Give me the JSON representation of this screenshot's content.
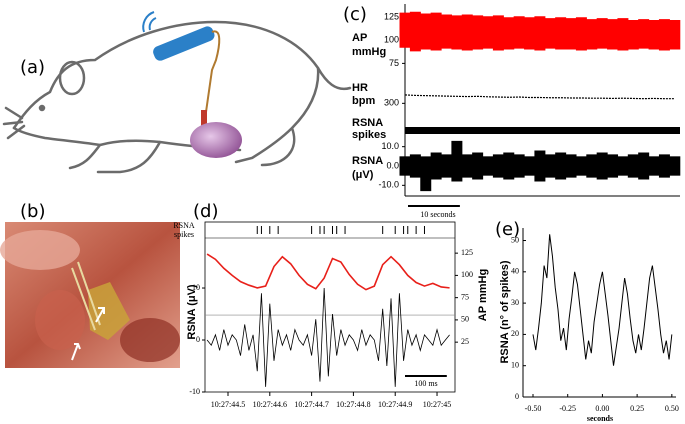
{
  "panels": {
    "a": "(a)",
    "b": "(b)"
  },
  "chart_data": [
    {
      "type": "band",
      "panel": "(c)",
      "ylabel_lines": [
        "AP",
        "mmHg"
      ],
      "color": "#ff0000",
      "x": [
        0,
        2,
        4,
        6,
        8,
        10,
        12,
        14,
        16,
        18,
        20,
        22,
        24,
        26,
        28,
        30,
        32,
        34,
        36,
        38,
        40,
        42,
        44,
        46,
        48,
        50,
        52
      ],
      "xlim": [
        0,
        53
      ],
      "upper": [
        130,
        131,
        129,
        130,
        128,
        127,
        128,
        127,
        126,
        127,
        125,
        126,
        125,
        126,
        124,
        125,
        124,
        125,
        123,
        124,
        123,
        124,
        122,
        123,
        122,
        123,
        122
      ],
      "lower": [
        92,
        88,
        90,
        89,
        91,
        90,
        89,
        90,
        91,
        89,
        90,
        91,
        90,
        89,
        91,
        90,
        90,
        89,
        90,
        91,
        90,
        89,
        90,
        91,
        90,
        89,
        90
      ],
      "ylim": [
        70,
        135
      ],
      "yticks": [
        75,
        100,
        125
      ]
    },
    {
      "type": "line",
      "ylabel_lines": [
        "HR",
        "bpm"
      ],
      "color": "#000000",
      "x": [
        0,
        2,
        4,
        6,
        8,
        10,
        12,
        14,
        16,
        18,
        20,
        22,
        24,
        26,
        28,
        30,
        32,
        34,
        36,
        38,
        40,
        42,
        44,
        46,
        48,
        50,
        52
      ],
      "xlim": [
        0,
        53
      ],
      "values": [
        336,
        334,
        333,
        332,
        331,
        330,
        329,
        330,
        328,
        327,
        326,
        327,
        325,
        325,
        324,
        324,
        323,
        323,
        322,
        322,
        321,
        322,
        321,
        320,
        321,
        320,
        320
      ],
      "ylim": [
        250,
        400
      ],
      "yticks": [
        300
      ]
    },
    {
      "type": "raster",
      "ylabel_lines": [
        "RSNA",
        "spikes"
      ]
    },
    {
      "type": "band",
      "ylabel_lines": [
        "RSNA",
        "(μV)"
      ],
      "color": "#000000",
      "x": [
        0,
        2,
        4,
        6,
        8,
        10,
        12,
        14,
        16,
        18,
        20,
        22,
        24,
        26,
        28,
        30,
        32,
        34,
        36,
        38,
        40,
        42,
        44,
        46,
        48,
        50,
        52
      ],
      "xlim": [
        0,
        53
      ],
      "upper": [
        5,
        6,
        5,
        7,
        6,
        13,
        6,
        7,
        5,
        6,
        7,
        6,
        5,
        8,
        6,
        7,
        6,
        5,
        6,
        7,
        6,
        5,
        6,
        7,
        5,
        6,
        5
      ],
      "lower": [
        -5,
        -6,
        -13,
        -7,
        -6,
        -8,
        -6,
        -7,
        -5,
        -6,
        -7,
        -6,
        -5,
        -8,
        -6,
        -7,
        -6,
        -5,
        -6,
        -7,
        -6,
        -5,
        -6,
        -7,
        -5,
        -6,
        -5
      ],
      "ylim": [
        -15,
        15
      ],
      "yticks": [
        {
          "value": 10,
          "label": "10.0"
        },
        {
          "value": 0,
          "label": "0.0"
        },
        {
          "value": -10,
          "label": "-10.0"
        }
      ],
      "scale_bar": {
        "value": 10,
        "label": "10 seconds"
      }
    },
    {
      "type": "dual",
      "panel": "(d)",
      "spikes_label": [
        "RSNA",
        "spikes"
      ],
      "spikes": [
        44.57,
        44.58,
        44.6,
        44.62,
        44.7,
        44.72,
        44.73,
        44.75,
        44.76,
        44.78,
        44.87,
        44.9,
        44.92,
        44.93,
        44.95,
        44.97
      ],
      "ylabel": "RSNA (μV)",
      "y2label": "AP mmHg",
      "xlim": [
        44.445,
        45.043
      ],
      "xticks": [
        {
          "value": 44.5,
          "label": "10:27:44.5"
        },
        {
          "value": 44.6,
          "label": "10:27:44.6"
        },
        {
          "value": 44.7,
          "label": "10:27:44.7"
        },
        {
          "value": 44.8,
          "label": "10:27:44.8"
        },
        {
          "value": 44.9,
          "label": "10:27:44.9"
        },
        {
          "value": 45,
          "label": "10:27:45"
        }
      ],
      "ylim": [
        -10,
        22.7
      ],
      "yticks": [
        10,
        0,
        -10
      ],
      "y2lim": [
        -31,
        160
      ],
      "y2ticks": [
        25,
        50,
        75,
        100,
        125
      ],
      "series": [
        {
          "color": "#e8201a",
          "axis": "y2",
          "x": [
            44.45,
            44.47,
            44.49,
            44.51,
            44.53,
            44.55,
            44.57,
            44.59,
            44.61,
            44.63,
            44.65,
            44.67,
            44.69,
            44.71,
            44.73,
            44.75,
            44.77,
            44.79,
            44.81,
            44.83,
            44.85,
            44.87,
            44.89,
            44.91,
            44.93,
            44.95,
            44.97,
            44.99,
            45.01,
            45.03
          ],
          "values": [
            124,
            118,
            108,
            100,
            93,
            89,
            86,
            88,
            110,
            121,
            113,
            100,
            90,
            85,
            97,
            119,
            115,
            101,
            90,
            84,
            88,
            112,
            121,
            112,
            100,
            92,
            88,
            91,
            87,
            86
          ]
        },
        {
          "color": "#000000",
          "x": [
            44.45,
            44.46,
            44.47,
            44.48,
            44.49,
            44.5,
            44.51,
            44.52,
            44.53,
            44.54,
            44.55,
            44.56,
            44.57,
            44.58,
            44.59,
            44.6,
            44.61,
            44.62,
            44.63,
            44.64,
            44.65,
            44.66,
            44.67,
            44.68,
            44.69,
            44.7,
            44.71,
            44.72,
            44.73,
            44.74,
            44.75,
            44.76,
            44.77,
            44.78,
            44.79,
            44.8,
            44.81,
            44.82,
            44.83,
            44.84,
            44.85,
            44.86,
            44.87,
            44.88,
            44.89,
            44.9,
            44.91,
            44.92,
            44.93,
            44.94,
            44.95,
            44.96,
            44.97,
            44.98,
            44.99,
            45,
            45.01,
            45.02,
            45.03
          ],
          "values": [
            0,
            -1,
            1,
            -2,
            2,
            -1,
            1,
            0,
            -3,
            3,
            -2,
            1,
            -6,
            9,
            -9,
            7,
            -4,
            2,
            -1,
            1,
            -2,
            2,
            0,
            -1,
            1,
            -3,
            4,
            -8,
            10,
            -7,
            5,
            -3,
            2,
            -1,
            1,
            0,
            -2,
            2,
            -1,
            1,
            0,
            -4,
            6,
            -5,
            8,
            -9,
            9,
            -4,
            2,
            -1,
            1,
            -2,
            1,
            0,
            -1,
            2,
            -1,
            0,
            1
          ]
        }
      ],
      "scale_bar": {
        "value": 0.1,
        "label": "100 ms"
      }
    },
    {
      "type": "line",
      "panel": "(e)",
      "color": "#000000",
      "xlabel": "seconds",
      "ylabel": "RSNA (n° of spikes)",
      "x": [
        -0.5,
        -0.48,
        -0.46,
        -0.44,
        -0.42,
        -0.4,
        -0.38,
        -0.36,
        -0.34,
        -0.32,
        -0.3,
        -0.28,
        -0.26,
        -0.24,
        -0.22,
        -0.2,
        -0.18,
        -0.16,
        -0.14,
        -0.12,
        -0.1,
        -0.08,
        -0.06,
        -0.04,
        -0.02,
        0,
        0.02,
        0.04,
        0.06,
        0.08,
        0.1,
        0.12,
        0.14,
        0.16,
        0.18,
        0.2,
        0.22,
        0.24,
        0.26,
        0.28,
        0.3,
        0.32,
        0.34,
        0.36,
        0.38,
        0.4,
        0.42,
        0.44,
        0.46,
        0.48,
        0.5
      ],
      "values": [
        20,
        15,
        22,
        30,
        42,
        38,
        52,
        45,
        35,
        28,
        18,
        22,
        15,
        25,
        32,
        40,
        36,
        28,
        20,
        12,
        18,
        14,
        24,
        30,
        36,
        40,
        33,
        26,
        18,
        10,
        16,
        22,
        30,
        38,
        33,
        25,
        18,
        14,
        20,
        15,
        22,
        30,
        38,
        42,
        35,
        28,
        20,
        14,
        18,
        12,
        20
      ],
      "xlim": [
        -0.572,
        0.53
      ],
      "xticks": [
        {
          "value": -0.5,
          "label": "-0.50"
        },
        {
          "value": -0.25,
          "label": "-0.25"
        },
        {
          "value": 0,
          "label": "0.00"
        },
        {
          "value": 0.25,
          "label": "0.25"
        },
        {
          "value": 0.5,
          "label": "0.50"
        }
      ],
      "ylim": [
        0,
        54
      ],
      "yticks": [
        0,
        10,
        20,
        30,
        40,
        50
      ]
    }
  ]
}
